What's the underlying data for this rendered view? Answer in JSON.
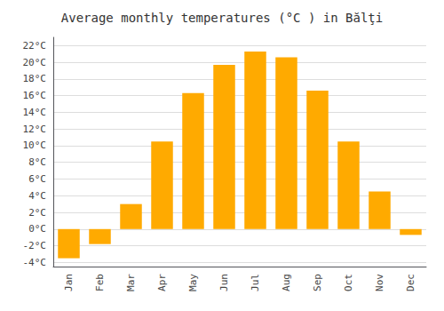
{
  "chart_data": {
    "type": "bar",
    "title": "Average monthly temperatures (°C ) in Bălţi",
    "categories": [
      "Jan",
      "Feb",
      "Mar",
      "Apr",
      "May",
      "Jun",
      "Jul",
      "Aug",
      "Sep",
      "Oct",
      "Nov",
      "Dec"
    ],
    "values": [
      -3.5,
      -1.8,
      3.0,
      10.5,
      16.3,
      19.7,
      21.3,
      20.6,
      16.6,
      10.5,
      4.5,
      -0.7
    ],
    "color": "#FFAA00",
    "ylim": [
      -4.5,
      23
    ],
    "yticks": [
      {
        "value": -4,
        "label": "-4°C"
      },
      {
        "value": -2,
        "label": "-2°C"
      },
      {
        "value": 0,
        "label": "0°C"
      },
      {
        "value": 2,
        "label": "2°C"
      },
      {
        "value": 4,
        "label": "4°C"
      },
      {
        "value": 6,
        "label": "6°C"
      },
      {
        "value": 8,
        "label": "8°C"
      },
      {
        "value": 10,
        "label": "10°C"
      },
      {
        "value": 12,
        "label": "12°C"
      },
      {
        "value": 14,
        "label": "14°C"
      },
      {
        "value": 16,
        "label": "16°C"
      },
      {
        "value": 18,
        "label": "18°C"
      },
      {
        "value": 20,
        "label": "20°C"
      },
      {
        "value": 22,
        "label": "22°C"
      }
    ],
    "grid": true
  }
}
